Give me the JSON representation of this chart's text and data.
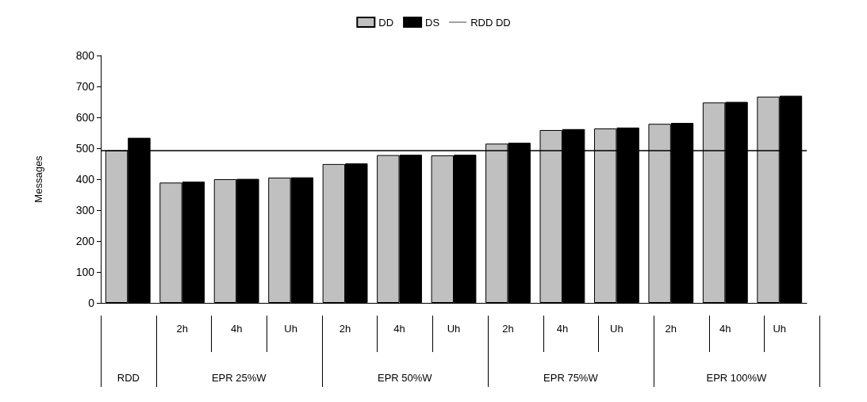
{
  "chart_data": {
    "type": "bar",
    "categories": [
      null,
      "2h",
      "4h",
      "Uh",
      "2h",
      "4h",
      "Uh",
      "2h",
      "4h",
      "Uh",
      "2h",
      "4h",
      "Uh"
    ],
    "series": [
      {
        "name": "DD",
        "color": "#c0c0c0",
        "values": [
          493,
          389,
          400,
          405,
          449,
          478,
          477,
          515,
          559,
          564,
          579,
          648,
          667
        ]
      },
      {
        "name": "DS",
        "color": "#000000",
        "values": [
          534,
          392,
          401,
          406,
          451,
          479,
          479,
          518,
          562,
          567,
          582,
          650,
          670
        ]
      }
    ],
    "ref_lines": [
      {
        "axis": "y",
        "value": 493,
        "label": "RDD DD",
        "color": "#000000"
      }
    ],
    "annotations": [
      "RDD",
      "EPR 25%W",
      "EPR 50%W",
      "EPR 75%W",
      "EPR 100%W"
    ],
    "ylabel": "Messages",
    "ylim": [
      0,
      800
    ],
    "yticks": [
      0,
      100,
      200,
      300,
      400,
      500,
      600,
      700,
      800
    ],
    "grid": false,
    "legend": "top"
  }
}
